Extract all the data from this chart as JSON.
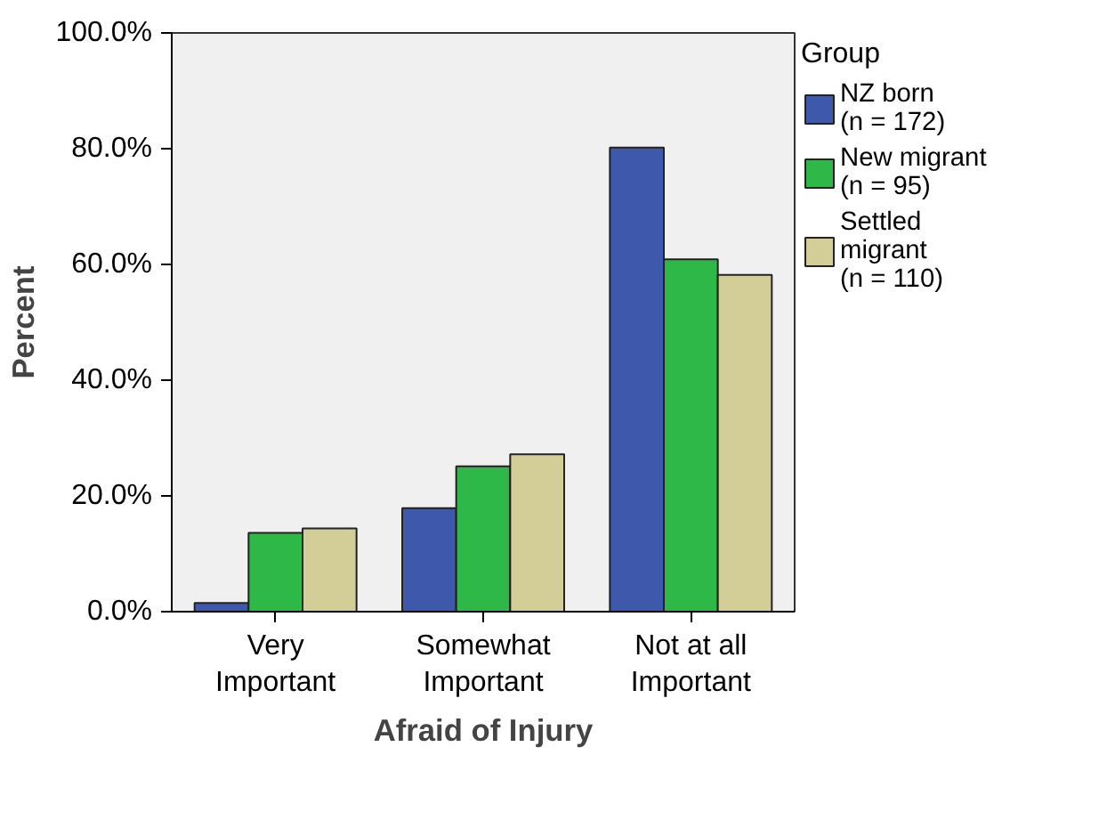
{
  "chart_data": {
    "type": "bar",
    "xlabel": "Afraid of Injury",
    "ylabel": "Percent",
    "legend_title": "Group",
    "legend": "right",
    "categories": [
      "Very\nImportant",
      "Somewhat\nImportant",
      "Not at all\nImportant"
    ],
    "series": [
      {
        "name": "NZ born\n(n = 172)",
        "color": "#3e58ac",
        "values": [
          1.5,
          17.9,
          80.2
        ]
      },
      {
        "name": "New migrant\n(n = 95)",
        "color": "#2eb848",
        "values": [
          13.6,
          25.1,
          60.9
        ]
      },
      {
        "name": "Settled\nmigrant\n(n = 110)",
        "color": "#d3ce97",
        "values": [
          14.4,
          27.2,
          58.2
        ]
      }
    ],
    "ylim": [
      0,
      100
    ],
    "yticks": [
      {
        "value": 0,
        "label": "0.0%"
      },
      {
        "value": 20,
        "label": "20.0%"
      },
      {
        "value": 40,
        "label": "40.0%"
      },
      {
        "value": 60,
        "label": "60.0%"
      },
      {
        "value": 80,
        "label": "80.0%"
      },
      {
        "value": 100,
        "label": "100.0%"
      }
    ]
  }
}
